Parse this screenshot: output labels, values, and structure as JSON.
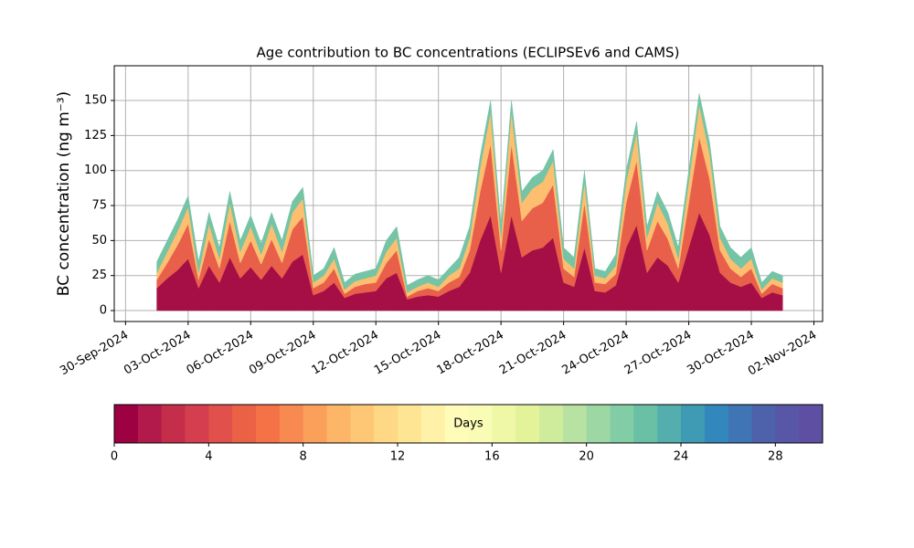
{
  "chart_data": {
    "type": "stacked-area",
    "title": "Age contribution to BC concentrations (ECLIPSEv6 and CAMS)",
    "ylabel": "BC concentration (ng m⁻³)",
    "grid": true,
    "x": [
      "2024-10-01T12:00",
      "2024-10-02T00:00",
      "2024-10-02T12:00",
      "2024-10-03T00:00",
      "2024-10-03T12:00",
      "2024-10-04T00:00",
      "2024-10-04T12:00",
      "2024-10-05T00:00",
      "2024-10-05T12:00",
      "2024-10-06T00:00",
      "2024-10-06T12:00",
      "2024-10-07T00:00",
      "2024-10-07T12:00",
      "2024-10-08T00:00",
      "2024-10-08T12:00",
      "2024-10-09T00:00",
      "2024-10-09T12:00",
      "2024-10-10T00:00",
      "2024-10-10T12:00",
      "2024-10-11T00:00",
      "2024-10-11T12:00",
      "2024-10-12T00:00",
      "2024-10-12T12:00",
      "2024-10-13T00:00",
      "2024-10-13T12:00",
      "2024-10-14T00:00",
      "2024-10-14T12:00",
      "2024-10-15T00:00",
      "2024-10-15T12:00",
      "2024-10-16T00:00",
      "2024-10-16T12:00",
      "2024-10-17T00:00",
      "2024-10-17T12:00",
      "2024-10-18T00:00",
      "2024-10-18T12:00",
      "2024-10-19T00:00",
      "2024-10-19T12:00",
      "2024-10-20T00:00",
      "2024-10-20T12:00",
      "2024-10-21T00:00",
      "2024-10-21T12:00",
      "2024-10-22T00:00",
      "2024-10-22T12:00",
      "2024-10-23T00:00",
      "2024-10-23T12:00",
      "2024-10-24T00:00",
      "2024-10-24T12:00",
      "2024-10-25T00:00",
      "2024-10-25T12:00",
      "2024-10-26T00:00",
      "2024-10-26T12:00",
      "2024-10-27T00:00",
      "2024-10-27T12:00",
      "2024-10-28T00:00",
      "2024-10-28T12:00",
      "2024-10-29T00:00",
      "2024-10-29T12:00",
      "2024-10-30T00:00",
      "2024-10-30T12:00",
      "2024-10-31T00:00",
      "2024-10-31T12:00"
    ],
    "series": [
      {
        "color": "#a50f45",
        "values": [
          16,
          23,
          29,
          37,
          16,
          32,
          20,
          38,
          23,
          31,
          22,
          32,
          23,
          35,
          40,
          11,
          14,
          20,
          9,
          12,
          13,
          14,
          23,
          27,
          8,
          10,
          11,
          10,
          14,
          17,
          27,
          50,
          68,
          27,
          68,
          38,
          43,
          45,
          52,
          20,
          17,
          45,
          14,
          13,
          18,
          45,
          61,
          27,
          38,
          32,
          20,
          45,
          70,
          54,
          27,
          20,
          17,
          20,
          9,
          13,
          11
        ]
      },
      {
        "color": "#e8604a",
        "values": [
          6,
          11,
          18,
          25,
          6,
          19,
          10,
          26,
          11,
          19,
          11,
          19,
          11,
          23,
          27,
          5,
          6,
          10,
          3,
          5,
          6,
          6,
          11,
          16,
          2,
          4,
          5,
          4,
          6,
          7,
          16,
          35,
          51,
          16,
          51,
          26,
          30,
          32,
          38,
          10,
          7,
          32,
          6,
          6,
          8,
          32,
          46,
          16,
          26,
          19,
          10,
          32,
          54,
          40,
          16,
          10,
          7,
          10,
          3,
          6,
          5
        ]
      },
      {
        "color": "#fdbf6f",
        "values": [
          5,
          8,
          10,
          12,
          5,
          11,
          7,
          13,
          8,
          10,
          7,
          11,
          8,
          12,
          13,
          4,
          5,
          7,
          3,
          4,
          4,
          5,
          8,
          9,
          3,
          3,
          4,
          3,
          5,
          6,
          9,
          17,
          23,
          9,
          23,
          13,
          14,
          15,
          17,
          7,
          6,
          15,
          5,
          4,
          6,
          15,
          20,
          9,
          13,
          11,
          7,
          15,
          23,
          18,
          9,
          7,
          6,
          7,
          3,
          4,
          4
        ]
      },
      {
        "color": "#74c4a5",
        "values": [
          8,
          8,
          8,
          8,
          8,
          8,
          8,
          8,
          8,
          8,
          8,
          8,
          8,
          8,
          8,
          5,
          5,
          8,
          5,
          5,
          5,
          5,
          8,
          8,
          5,
          5,
          5,
          5,
          5,
          8,
          8,
          8,
          8,
          8,
          8,
          8,
          8,
          8,
          8,
          8,
          8,
          8,
          5,
          5,
          8,
          8,
          8,
          8,
          8,
          8,
          8,
          8,
          8,
          8,
          8,
          8,
          8,
          8,
          5,
          5,
          5
        ]
      }
    ],
    "xlim": [
      "2024-09-29T11:00",
      "2024-11-02T10:00"
    ],
    "xticks": [
      {
        "value": "2024-09-30T00:00",
        "label": "30-Sep-2024"
      },
      {
        "value": "2024-10-03T00:00",
        "label": "03-Oct-2024"
      },
      {
        "value": "2024-10-06T00:00",
        "label": "06-Oct-2024"
      },
      {
        "value": "2024-10-09T00:00",
        "label": "09-Oct-2024"
      },
      {
        "value": "2024-10-12T00:00",
        "label": "12-Oct-2024"
      },
      {
        "value": "2024-10-15T00:00",
        "label": "15-Oct-2024"
      },
      {
        "value": "2024-10-18T00:00",
        "label": "18-Oct-2024"
      },
      {
        "value": "2024-10-21T00:00",
        "label": "21-Oct-2024"
      },
      {
        "value": "2024-10-24T00:00",
        "label": "24-Oct-2024"
      },
      {
        "value": "2024-10-27T00:00",
        "label": "27-Oct-2024"
      },
      {
        "value": "2024-10-30T00:00",
        "label": "30-Oct-2024"
      },
      {
        "value": "2024-11-02T00:00",
        "label": "02-Nov-2024"
      }
    ],
    "ylim": [
      -7.8,
      174.8
    ],
    "yticks": [
      0,
      25,
      50,
      75,
      100,
      125,
      150
    ],
    "colorbar": {
      "label": "Days",
      "lim": [
        0,
        30
      ],
      "ticks": [
        0,
        4,
        8,
        12,
        16,
        20,
        24,
        28
      ],
      "colors": [
        "#9e0142",
        "#b11a4a",
        "#c42e4a",
        "#d53e4f",
        "#e1504a",
        "#ea6145",
        "#f47245",
        "#f88a51",
        "#fba05b",
        "#fdb567",
        "#fec776",
        "#fed884",
        "#fee593",
        "#fff1a8",
        "#fffbb8",
        "#f9fcb5",
        "#eff8a6",
        "#e3f399",
        "#cfec9d",
        "#b7e2a1",
        "#9dd7a4",
        "#82cda5",
        "#69c0a5",
        "#54aead",
        "#3f9bb4",
        "#3288bd",
        "#3f75b4",
        "#4d62ab",
        "#5856a6",
        "#5e4fa2"
      ]
    }
  }
}
